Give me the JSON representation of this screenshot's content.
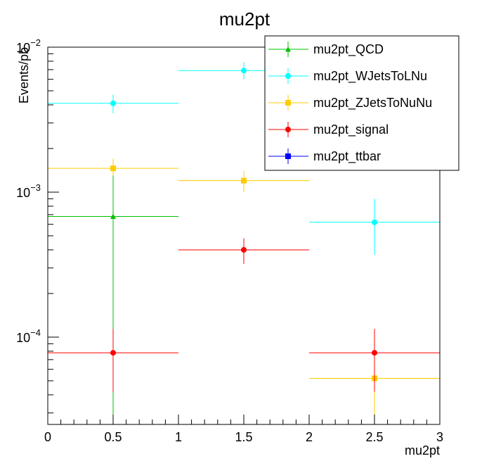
{
  "chart_data": {
    "type": "scatter",
    "title": "mu2pt",
    "xlabel": "mu2pt",
    "ylabel": "Events/pb",
    "xlim": [
      0,
      3
    ],
    "ylim": [
      2.5e-05,
      0.01
    ],
    "yscale": "log",
    "grid": false,
    "legend_position": "top-right",
    "x_ticks": [
      "0",
      "0.5",
      "1",
      "1.5",
      "2",
      "2.5",
      "3"
    ],
    "y_tick_labels": [
      {
        "value": 0.0001,
        "base": "10",
        "exp": "−4"
      },
      {
        "value": 0.001,
        "base": "10",
        "exp": "−3"
      },
      {
        "value": 0.01,
        "base": "10",
        "exp": "−2"
      }
    ],
    "bins": [
      [
        0,
        1
      ],
      [
        1,
        2
      ],
      [
        2,
        3
      ]
    ],
    "series": [
      {
        "name": "mu2pt_QCD",
        "color": "#00c000",
        "marker": "triangle",
        "points": [
          {
            "x": 0.5,
            "y": 0.00068,
            "ylo": 2.5e-05,
            "yhi": 0.00135
          }
        ]
      },
      {
        "name": "mu2pt_WJetsToLNu",
        "color": "#00ffff",
        "marker": "circle",
        "points": [
          {
            "x": 0.5,
            "y": 0.0041,
            "ylo": 0.0035,
            "yhi": 0.0047
          },
          {
            "x": 1.5,
            "y": 0.0069,
            "ylo": 0.006,
            "yhi": 0.0079
          },
          {
            "x": 2.5,
            "y": 0.00062,
            "ylo": 0.00037,
            "yhi": 0.0009
          }
        ]
      },
      {
        "name": "mu2pt_ZJetsToNuNu",
        "color": "#ffcc00",
        "marker": "square",
        "points": [
          {
            "x": 0.5,
            "y": 0.00146,
            "ylo": 0.0013,
            "yhi": 0.0017
          },
          {
            "x": 1.5,
            "y": 0.0012,
            "ylo": 0.001,
            "yhi": 0.0014
          },
          {
            "x": 2.5,
            "y": 5.2e-05,
            "ylo": 2.6e-05,
            "yhi": 8e-05
          }
        ]
      },
      {
        "name": "mu2pt_signal",
        "color": "#ff0000",
        "marker": "circle",
        "points": [
          {
            "x": 0.5,
            "y": 7.8e-05,
            "ylo": 4.2e-05,
            "yhi": 0.000114
          },
          {
            "x": 1.5,
            "y": 0.0004,
            "ylo": 0.00032,
            "yhi": 0.00048
          },
          {
            "x": 2.5,
            "y": 7.8e-05,
            "ylo": 4.2e-05,
            "yhi": 0.000114
          }
        ]
      },
      {
        "name": "mu2pt_ttbar",
        "color": "#0000ff",
        "marker": "square",
        "points": []
      }
    ]
  }
}
